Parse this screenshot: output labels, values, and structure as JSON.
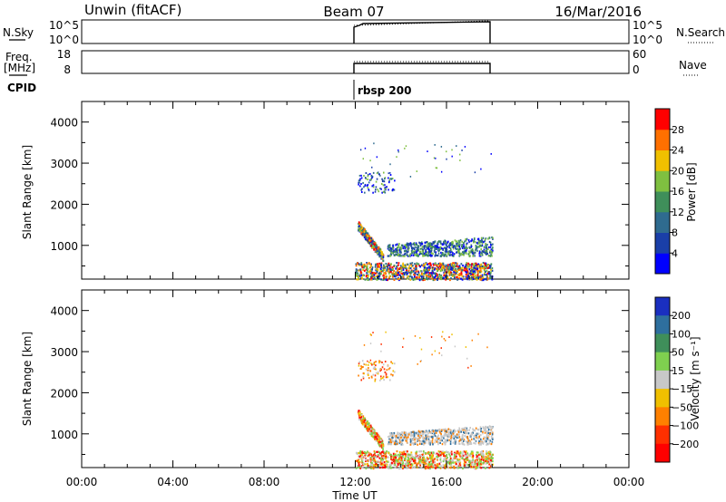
{
  "header": {
    "left": "Unwin (fitACF)",
    "center": "Beam 07",
    "right": "16/Mar/2016"
  },
  "top_panels": {
    "sky": {
      "left_label": "N.Sky",
      "left_ticks": [
        "10^5",
        "10^0"
      ],
      "right_ticks": [
        "10^5",
        "10^0"
      ],
      "right_label": "N.Search"
    },
    "freq": {
      "left_label_1": "Freq.",
      "left_label_2": "[MHz]",
      "left_ticks": [
        "18",
        "8"
      ],
      "right_ticks": [
        "60",
        "0"
      ],
      "right_label": "Nave"
    },
    "cpid": {
      "label": "CPID",
      "program": "rbsp 200"
    }
  },
  "colors": {
    "power_scale": [
      "#0000ff",
      "#1a3fa8",
      "#2f6b8f",
      "#3f8f5a",
      "#7fc040",
      "#f0c000",
      "#ff7000",
      "#ff0000"
    ],
    "velocity_scale": [
      "#1a2fc0",
      "#2e6f9e",
      "#3f8f5a",
      "#7fd04f",
      "#c8c8c8",
      "#f0c000",
      "#ff8000",
      "#ff3000",
      "#ff0000"
    ]
  },
  "chart_data": [
    {
      "type": "heatmap",
      "name": "power",
      "ylabel": "Slant Range [km]",
      "xlabel": "Time UT",
      "x_ticks": [
        "00:00",
        "04:00",
        "08:00",
        "12:00",
        "16:00",
        "20:00",
        "00:00"
      ],
      "y_ticks": [
        "1000",
        "2000",
        "3000",
        "4000"
      ],
      "y_tick_values": [
        1000,
        2000,
        3000,
        4000
      ],
      "ylim": [
        180,
        4500
      ],
      "colorbar_label": "Power [dB]",
      "colorbar_ticks": [
        "4",
        "8",
        "12",
        "16",
        "20",
        "24",
        "28"
      ],
      "data_window_ut_hours": [
        12,
        18
      ]
    },
    {
      "type": "heatmap",
      "name": "velocity",
      "ylabel": "Slant Range [km]",
      "xlabel": "Time UT",
      "x_ticks": [
        "00:00",
        "04:00",
        "08:00",
        "12:00",
        "16:00",
        "20:00",
        "00:00"
      ],
      "y_ticks": [
        "1000",
        "2000",
        "3000",
        "4000"
      ],
      "y_tick_values": [
        1000,
        2000,
        3000,
        4000
      ],
      "ylim": [
        180,
        4500
      ],
      "colorbar_label": "Velocity [m s⁻¹]",
      "colorbar_ticks": [
        "200",
        "100",
        "50",
        "15",
        "−15",
        "−50",
        "−100",
        "−200"
      ],
      "data_window_ut_hours": [
        12,
        18
      ]
    }
  ]
}
